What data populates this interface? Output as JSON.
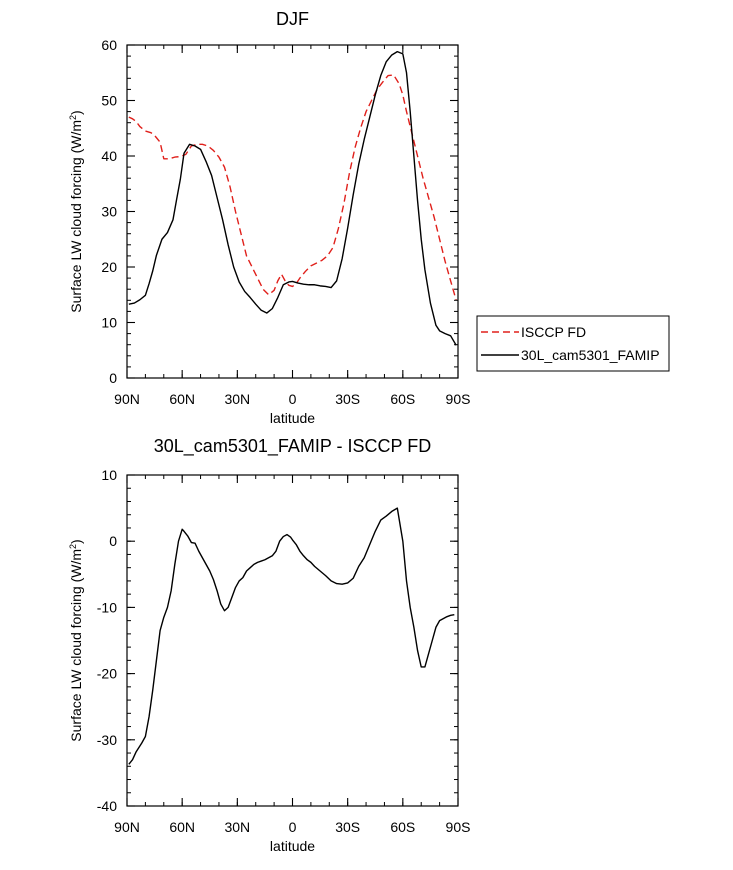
{
  "chart_data": [
    {
      "type": "line",
      "title": "DJF",
      "xlabel": "latitude",
      "ylabel": "Surface LW cloud forcing (W/m",
      "ylabel_sup": "2",
      "ylabel_close": ")",
      "xlim": [
        90,
        -90
      ],
      "ylim": [
        0,
        60
      ],
      "xticks": [
        90,
        60,
        30,
        0,
        -30,
        -60,
        -90
      ],
      "xtick_labels": [
        "90N",
        "60N",
        "30N",
        "0",
        "30S",
        "60S",
        "90S"
      ],
      "yticks": [
        0,
        10,
        20,
        30,
        40,
        50,
        60
      ],
      "ytick_labels": [
        "0",
        "10",
        "20",
        "30",
        "40",
        "50",
        "60"
      ],
      "legend": {
        "placement": "right",
        "entries": [
          "ISCCP FD",
          "30L_cam5301_FAMIP"
        ]
      },
      "series": [
        {
          "name": "ISCCP FD",
          "color": "#e0201b",
          "dash": "dashed",
          "x": [
            89,
            87,
            85,
            83,
            80,
            77,
            75,
            72,
            70,
            67,
            64,
            61,
            58,
            55,
            52,
            49,
            46,
            43,
            40,
            37,
            34,
            31,
            28,
            25,
            22,
            19,
            16,
            13,
            10,
            8,
            6,
            4,
            2,
            0,
            -2,
            -4,
            -7,
            -10,
            -13,
            -16,
            -19,
            -22,
            -25,
            -28,
            -31,
            -34,
            -37,
            -40,
            -43,
            -46,
            -49,
            -52,
            -55,
            -58,
            -60,
            -62,
            -65,
            -68,
            -71,
            -74,
            -77,
            -80,
            -83,
            -86,
            -89
          ],
          "y": [
            47,
            46.7,
            46.2,
            45.3,
            44.5,
            44.2,
            43.7,
            42.5,
            39.5,
            39.5,
            39.8,
            39.9,
            40.3,
            41.8,
            42.1,
            42.1,
            41.8,
            41,
            39.8,
            38,
            34.5,
            30,
            26,
            22,
            20,
            18,
            16,
            15,
            15.8,
            17.5,
            18.7,
            17.5,
            16.7,
            16.5,
            17,
            18,
            19.2,
            20.2,
            20.7,
            21.2,
            22,
            23.5,
            27,
            31.5,
            37,
            41.5,
            45,
            48,
            50,
            52,
            53.3,
            54.5,
            54.6,
            53,
            51,
            48,
            44,
            40,
            36,
            32.5,
            29,
            25,
            21,
            17.5,
            14
          ]
        },
        {
          "name": "30L_cam5301_FAMIP",
          "color": "#000000",
          "dash": "solid",
          "x": [
            89,
            86,
            83,
            80,
            78,
            76,
            74,
            71,
            68,
            65,
            63,
            61,
            59,
            56,
            53,
            50,
            47,
            44,
            41,
            38,
            35,
            32,
            29,
            26,
            23,
            20,
            17,
            14,
            11,
            8,
            5,
            2,
            0,
            -3,
            -6,
            -9,
            -12,
            -15,
            -18,
            -21,
            -24,
            -27,
            -30,
            -33,
            -36,
            -39,
            -42,
            -45,
            -48,
            -51,
            -54,
            -57,
            -60,
            -62,
            -64,
            -66,
            -68,
            -70,
            -72,
            -75,
            -78,
            -80,
            -83,
            -86,
            -89
          ],
          "y": [
            13.3,
            13.5,
            14.1,
            14.9,
            17,
            19.3,
            22.1,
            25,
            26.2,
            28.5,
            32.2,
            35.8,
            40.5,
            42.1,
            41.8,
            41.2,
            39,
            36.5,
            32.5,
            28.5,
            24,
            20,
            17.3,
            15.6,
            14.5,
            13.3,
            12.2,
            11.7,
            12.5,
            14.5,
            16.8,
            17.3,
            17.4,
            17.1,
            16.9,
            16.8,
            16.8,
            16.6,
            16.5,
            16.3,
            17.5,
            21.5,
            27,
            33,
            38.5,
            43,
            47,
            51,
            54.5,
            57,
            58.2,
            58.8,
            58.4,
            55,
            48,
            40,
            32,
            25,
            19.5,
            13.5,
            9.5,
            8.5,
            8,
            7.6,
            5.9
          ]
        }
      ]
    },
    {
      "type": "line",
      "title": "30L_cam5301_FAMIP - ISCCP FD",
      "xlabel": "latitude",
      "ylabel": "Surface LW cloud forcing (W/m",
      "ylabel_sup": "2",
      "ylabel_close": ")",
      "xlim": [
        90,
        -90
      ],
      "ylim": [
        -40,
        10
      ],
      "xticks": [
        90,
        60,
        30,
        0,
        -30,
        -60,
        -90
      ],
      "xtick_labels": [
        "90N",
        "60N",
        "30N",
        "0",
        "30S",
        "60S",
        "90S"
      ],
      "yticks": [
        -40,
        -30,
        -20,
        -10,
        0,
        10
      ],
      "ytick_labels": [
        "-40",
        "-30",
        "-20",
        "-10",
        "0",
        "10"
      ],
      "series": [
        {
          "color": "#000000",
          "dash": "solid",
          "x": [
            89,
            87,
            85,
            82,
            80,
            78,
            76,
            74,
            72,
            70,
            68,
            66,
            64,
            62,
            60,
            59,
            57,
            55,
            53,
            51,
            49,
            47,
            45,
            43,
            41,
            39,
            37,
            35,
            33,
            31,
            29,
            27,
            25,
            23,
            21,
            19,
            17,
            15,
            13,
            11,
            9,
            7,
            5,
            3,
            1,
            0,
            -2,
            -4,
            -6,
            -8,
            -10,
            -12,
            -15,
            -18,
            -21,
            -24,
            -27,
            -30,
            -33,
            -36,
            -39,
            -42,
            -45,
            -48,
            -51,
            -54,
            -57,
            -60,
            -62,
            -64,
            -66,
            -68,
            -70,
            -72,
            -74,
            -76,
            -78,
            -80,
            -82,
            -84,
            -86,
            -88
          ],
          "y": [
            -33.7,
            -33,
            -31.8,
            -30.5,
            -29.5,
            -26.5,
            -22.5,
            -18,
            -13.5,
            -11.5,
            -10,
            -7.5,
            -3.5,
            0,
            1.8,
            1.5,
            0.8,
            -0.2,
            -0.3,
            -1.5,
            -2.5,
            -3.5,
            -4.5,
            -5.8,
            -7.5,
            -9.5,
            -10.5,
            -10,
            -8.5,
            -7,
            -6,
            -5.5,
            -4.5,
            -4,
            -3.5,
            -3.2,
            -3,
            -2.8,
            -2.5,
            -2.2,
            -1.5,
            0,
            0.7,
            1,
            0.6,
            0.2,
            -0.5,
            -1.5,
            -2.2,
            -2.8,
            -3.2,
            -3.8,
            -4.5,
            -5.2,
            -6,
            -6.4,
            -6.5,
            -6.3,
            -5.6,
            -3.8,
            -2.5,
            -0.5,
            1.5,
            3.2,
            3.8,
            4.5,
            5,
            0,
            -6,
            -10,
            -13,
            -16.5,
            -19,
            -19,
            -17,
            -15,
            -13,
            -12,
            -11.7,
            -11.4,
            -11.2,
            -11.1
          ]
        }
      ]
    }
  ]
}
